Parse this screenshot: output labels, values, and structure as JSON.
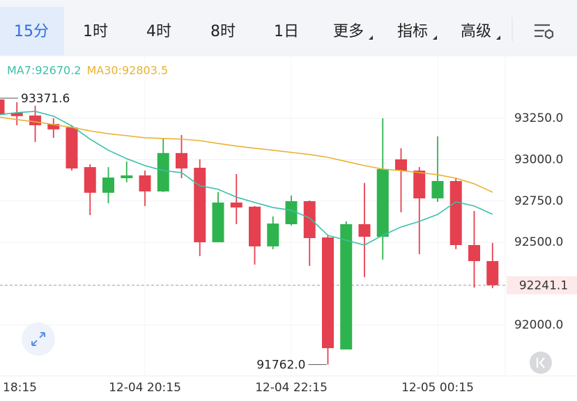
{
  "tabs": [
    "15分",
    "1时",
    "4时",
    "8时",
    "1日",
    "更多",
    "指标",
    "高级"
  ],
  "chart_data": {
    "type": "candlestick",
    "categories": [
      "18:15",
      null,
      null,
      null,
      null,
      null,
      null,
      null,
      "12-04 20:15",
      null,
      null,
      null,
      null,
      null,
      null,
      null,
      "12-04 22:15",
      null,
      null,
      null,
      null,
      null,
      null,
      null,
      "12-05 00:15",
      null,
      null,
      null
    ],
    "open": [
      93364,
      93284,
      93267,
      93216,
      93195,
      92955,
      92800,
      92888,
      92905,
      92808,
      93040,
      92951,
      92501,
      92741,
      92716,
      92476,
      92610,
      92749,
      92530,
      91853,
      92610,
      92534,
      93002,
      92934,
      92766,
      92871,
      92484,
      92387
    ],
    "high": [
      93371.6,
      93347,
      93326,
      93250,
      93208,
      92972,
      92955,
      92989,
      92934,
      93132,
      93149,
      93002,
      92804,
      92913,
      92720,
      92657,
      92783,
      92753,
      92543,
      92627,
      92859,
      93250,
      93069,
      92955,
      93141,
      92892,
      92690,
      92497
    ],
    "low": [
      93258,
      93208,
      93107,
      93132,
      92934,
      92665,
      92737,
      92863,
      92720,
      92804,
      92888,
      92417,
      92501,
      92610,
      92366,
      92459,
      92602,
      92358,
      91762,
      91853,
      92290,
      92396,
      92682,
      92429,
      92745,
      92459,
      92227,
      92223
    ],
    "close": [
      93271,
      93263,
      93208,
      93183,
      92947,
      92800,
      92892,
      92905,
      92808,
      93040,
      92947,
      92501,
      92741,
      92711,
      92476,
      92614,
      92749,
      92526,
      91861,
      92610,
      92534,
      92943,
      92934,
      92766,
      92871,
      92484,
      92387,
      92241.1
    ],
    "up_color": "#2fb34f",
    "down_color": "#e5404f",
    "series": [
      {
        "name": "MA7",
        "legend": "MA7:92670.2",
        "color": "#3cbfa6",
        "values": [
          93271,
          93284,
          93292,
          93263,
          93204,
          93124,
          93057,
          93006,
          92964,
          92934,
          92922,
          92842,
          92821,
          92774,
          92741,
          92711,
          92694,
          92648,
          92543,
          92513,
          92484,
          92543,
          92593,
          92627,
          92669,
          92745,
          92720,
          92670.2
        ]
      },
      {
        "name": "MA30",
        "legend": "MA30:92803.5",
        "color": "#e9b231",
        "values": [
          93258,
          93242,
          93229,
          93212,
          93195,
          93174,
          93157,
          93145,
          93132,
          93128,
          93124,
          93115,
          93098,
          93082,
          93069,
          93057,
          93044,
          93031,
          93014,
          92989,
          92964,
          92943,
          92934,
          92922,
          92909,
          92888,
          92854,
          92803.5
        ]
      }
    ],
    "high_label": "93371.6",
    "low_label": "91762.0",
    "last_price": 92241.1,
    "ylim": [
      91693,
      93439
    ],
    "yticks": [
      {
        "value": 93250,
        "label": "93250.0"
      },
      {
        "value": 93000,
        "label": "93000.0"
      },
      {
        "value": 92750,
        "label": "92750.0"
      },
      {
        "value": 92500,
        "label": "92500.0"
      },
      {
        "value": 92000,
        "label": "92000.0"
      }
    ],
    "grid": true
  }
}
